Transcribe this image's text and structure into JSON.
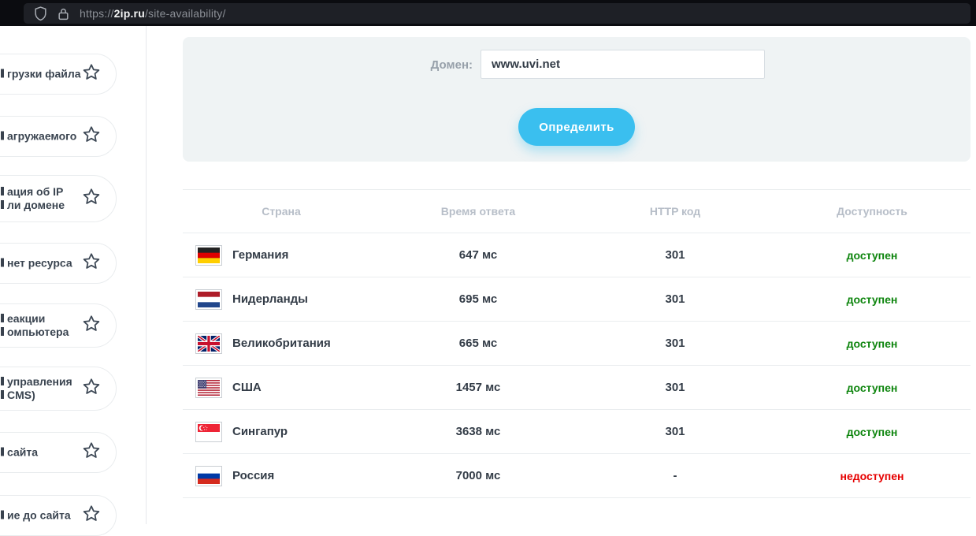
{
  "browser": {
    "url_prefix": "https://",
    "url_domain": "2ip.ru",
    "url_path": "/site-availability/",
    "icons": [
      "shield-icon",
      "lock-icon"
    ]
  },
  "sidebar": {
    "items": [
      {
        "lines": [
          "грузки файла"
        ],
        "icon": "favorite-star-icon"
      },
      {
        "lines": [
          "агружаемого"
        ],
        "icon": "favorite-star-icon"
      },
      {
        "lines": [
          "ация об IP",
          "ли домене"
        ],
        "icon": "favorite-star-icon"
      },
      {
        "lines": [
          "нет ресурса"
        ],
        "icon": "favorite-star-icon"
      },
      {
        "lines": [
          "еакции",
          "омпьютера"
        ],
        "icon": "favorite-star-icon"
      },
      {
        "lines": [
          "управления",
          "CMS)"
        ],
        "icon": "favorite-star-icon"
      },
      {
        "lines": [
          "сайта"
        ],
        "icon": "favorite-star-icon"
      },
      {
        "lines": [
          "ие до сайта"
        ],
        "icon": "favorite-star-icon"
      }
    ]
  },
  "form": {
    "domain_label": "Домен:",
    "domain_value": "www.uvi.net",
    "submit_label": "Определить"
  },
  "table": {
    "headers": [
      "Страна",
      "Время ответа",
      "HTTP код",
      "Доступность"
    ],
    "rows": [
      {
        "flag": "de",
        "country": "Германия",
        "time": "647 мс",
        "http": "301",
        "status": "доступен",
        "status_ok": true
      },
      {
        "flag": "nl",
        "country": "Нидерланды",
        "time": "695 мс",
        "http": "301",
        "status": "доступен",
        "status_ok": true
      },
      {
        "flag": "gb",
        "country": "Великобритания",
        "time": "665 мс",
        "http": "301",
        "status": "доступен",
        "status_ok": true
      },
      {
        "flag": "us",
        "country": "США",
        "time": "1457 мс",
        "http": "301",
        "status": "доступен",
        "status_ok": true
      },
      {
        "flag": "sg",
        "country": "Сингапур",
        "time": "3638 мс",
        "http": "301",
        "status": "доступен",
        "status_ok": true
      },
      {
        "flag": "ru",
        "country": "Россия",
        "time": "7000 мс",
        "http": "-",
        "status": "недоступен",
        "status_ok": false
      }
    ]
  },
  "colors": {
    "accent": "#3abfef",
    "ok": "#0e850e",
    "fail": "#e60000"
  }
}
